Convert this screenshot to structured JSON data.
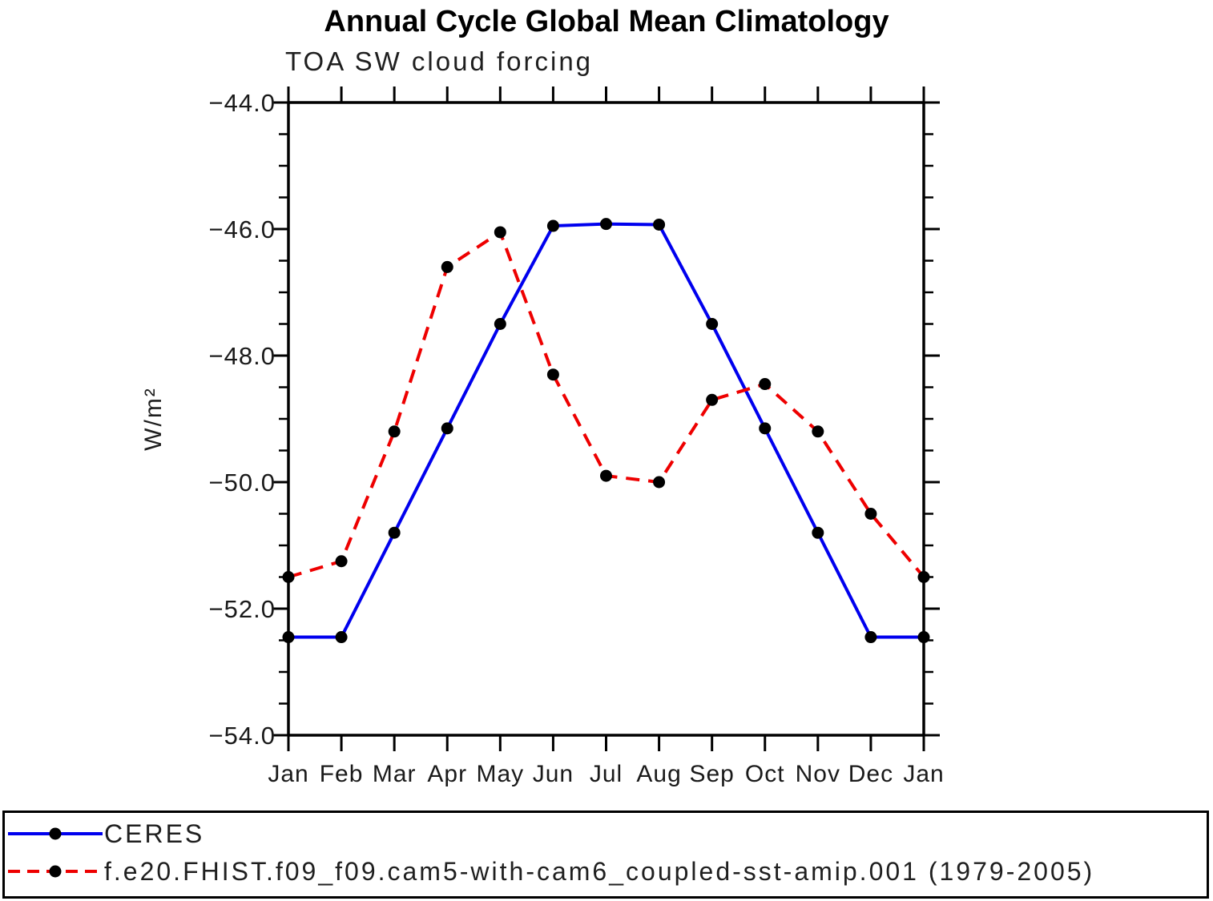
{
  "figure": {
    "title": "Annual Cycle Global Mean Climatology",
    "subtitle": "TOA SW cloud forcing",
    "y_axis_label": "W/m²"
  },
  "legend": {
    "position": "bottom",
    "items": [
      {
        "label": "CERES"
      },
      {
        "label": "f.e20.FHIST.f09_f09.cam5-with-cam6_coupled-sst-amip.001 (1979-2005)"
      }
    ]
  },
  "chart_data": {
    "type": "line",
    "title": "Annual Cycle Global Mean Climatology",
    "subtitle": "TOA SW cloud forcing",
    "xlabel": "",
    "ylabel": "W/m²",
    "ylim": [
      -54.0,
      -44.0
    ],
    "y_major_tick_step": 2.0,
    "y_minor_tick_step": 0.5,
    "y_tick_labels": [
      "−44.0",
      "−46.0",
      "−48.0",
      "−50.0",
      "−52.0",
      "−54.0"
    ],
    "categories": [
      "Jan",
      "Feb",
      "Mar",
      "Apr",
      "May",
      "Jun",
      "Jul",
      "Aug",
      "Sep",
      "Oct",
      "Nov",
      "Dec",
      "Jan"
    ],
    "grid": false,
    "legend_position": "bottom-left",
    "axis_color": "#000000",
    "series": [
      {
        "name": "CERES",
        "color": "#0000ee",
        "line_style": "solid",
        "marker": "filled-circle",
        "marker_color": "#000000",
        "values": [
          -52.45,
          -52.45,
          -50.8,
          -49.15,
          -47.5,
          -45.95,
          -45.92,
          -45.93,
          -47.5,
          -49.15,
          -50.8,
          -52.45,
          -52.45
        ]
      },
      {
        "name": "f.e20.FHIST.f09_f09.cam5-with-cam6_coupled-sst-amip.001 (1979-2005)",
        "color": "#ee0000",
        "line_style": "dashed",
        "marker": "filled-circle",
        "marker_color": "#000000",
        "values": [
          -51.5,
          -51.25,
          -49.2,
          -46.6,
          -46.05,
          -48.3,
          -49.9,
          -50.0,
          -48.7,
          -48.45,
          -49.2,
          -50.5,
          -51.5
        ]
      }
    ]
  }
}
